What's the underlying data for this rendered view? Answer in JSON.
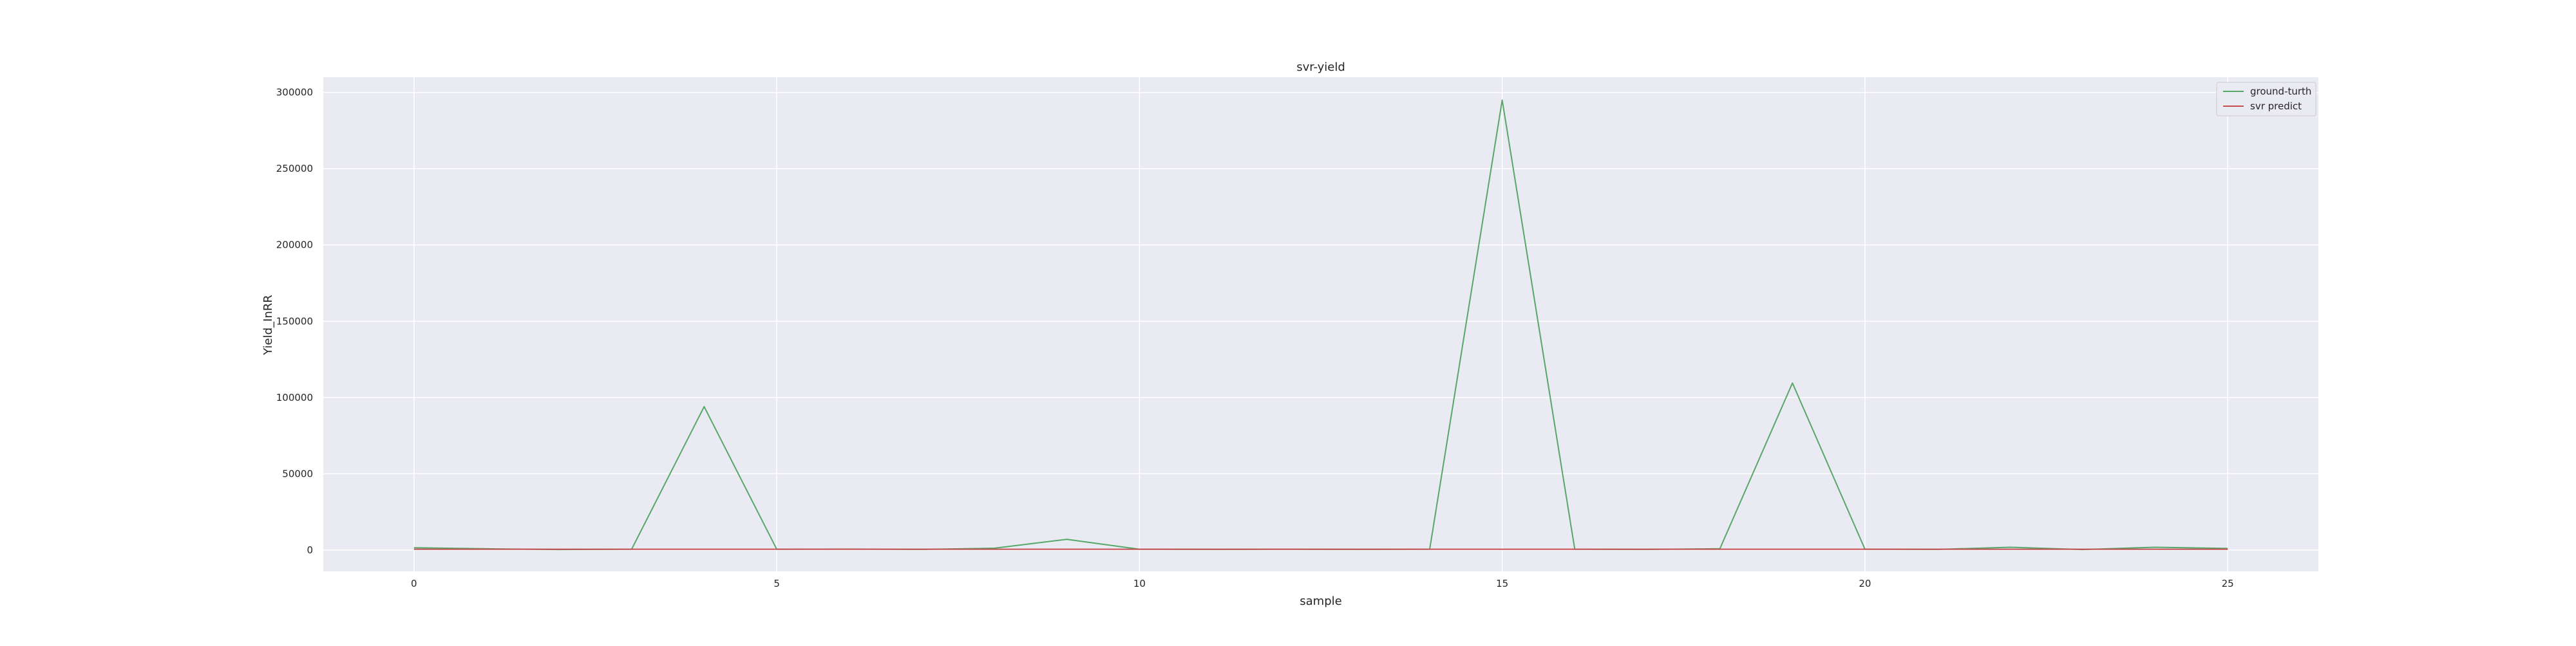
{
  "chart_data": {
    "type": "line",
    "title": "svr-yield",
    "xlabel": "sample",
    "ylabel": "Yield_InRR",
    "x": [
      0,
      1,
      2,
      3,
      4,
      5,
      6,
      7,
      8,
      9,
      10,
      11,
      12,
      13,
      14,
      15,
      16,
      17,
      18,
      19,
      20,
      21,
      22,
      23,
      24,
      25
    ],
    "xlim": [
      -1.25,
      26.25
    ],
    "ylim": [
      -14000,
      310000
    ],
    "xticks": [
      0,
      5,
      10,
      15,
      20,
      25
    ],
    "yticks": [
      0,
      50000,
      100000,
      150000,
      200000,
      250000,
      300000
    ],
    "xtick_labels": [
      "0",
      "5",
      "10",
      "15",
      "20",
      "25"
    ],
    "ytick_labels": [
      "0",
      "50000",
      "100000",
      "150000",
      "200000",
      "250000",
      "300000"
    ],
    "grid": true,
    "legend_position": "top-right",
    "background_color": "#eaeaf2",
    "grid_color": "#ffffff",
    "series": [
      {
        "name": "ground-turth",
        "color": "#55a868",
        "values": [
          1500,
          800,
          300,
          500,
          94000,
          500,
          600,
          400,
          1200,
          7000,
          500,
          400,
          500,
          400,
          500,
          295000,
          500,
          400,
          800,
          109500,
          500,
          400,
          1800,
          300,
          1800,
          1000
        ]
      },
      {
        "name": "svr predict",
        "color": "#c44e52",
        "values": [
          500,
          500,
          500,
          500,
          500,
          500,
          500,
          500,
          500,
          500,
          500,
          500,
          500,
          500,
          500,
          500,
          500,
          500,
          500,
          500,
          500,
          500,
          500,
          500,
          500,
          500
        ]
      }
    ]
  }
}
